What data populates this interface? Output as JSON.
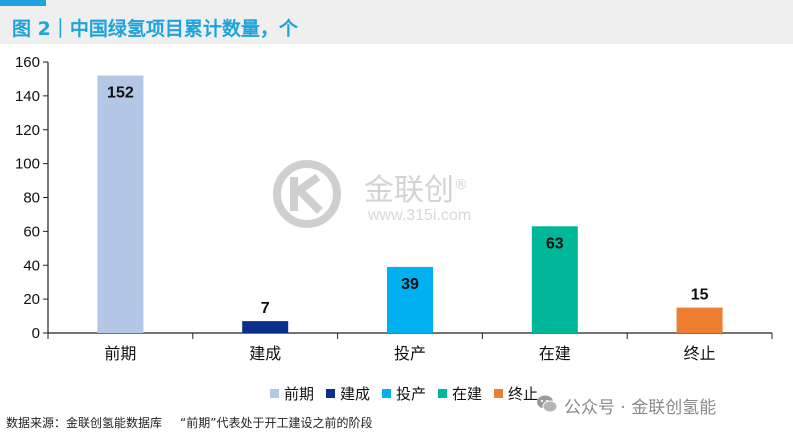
{
  "header": {
    "title": "图 2｜中国绿氢项目累计数量，个"
  },
  "chart_data": {
    "type": "bar",
    "categories": [
      "前期",
      "建成",
      "投产",
      "在建",
      "终止"
    ],
    "values": [
      152,
      7,
      39,
      63,
      15
    ],
    "colors": [
      "#b4c7e7",
      "#0a2f8c",
      "#00b0f0",
      "#00b899",
      "#ed7d31"
    ],
    "ylim": [
      0,
      160
    ],
    "yticks": [
      0,
      20,
      40,
      60,
      80,
      100,
      120,
      140,
      160
    ],
    "ytick_labels": [
      "0",
      "20",
      "40",
      "60",
      "80",
      "100",
      "120",
      "140",
      "160"
    ],
    "data_labels": [
      "152",
      "7",
      "39",
      "63",
      "15"
    ],
    "legend": {
      "position": "bottom-right",
      "entries": [
        "前期",
        "建成",
        "投产",
        "在建",
        "终止"
      ]
    },
    "grid": false
  },
  "source": {
    "label": "数据来源：金联创氢能数据库",
    "note": "“前期”代表处于开工建设之前的阶段"
  },
  "watermark": {
    "brand": "金联创",
    "registered": "®",
    "url": "www.315i.com"
  },
  "wechat": {
    "text": "公众号 · 金联创氢能"
  }
}
